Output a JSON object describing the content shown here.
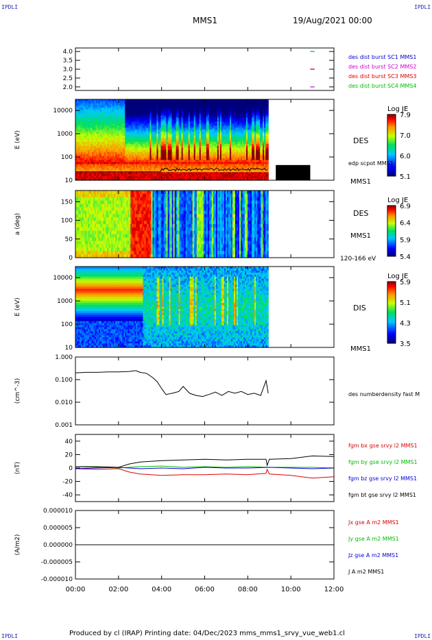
{
  "corners": {
    "tl": "IPDLI",
    "tr": "IPDLI",
    "bl": "IPDLI",
    "br": "IPDLI"
  },
  "header": {
    "spacecraft": "MMS1",
    "datetime": "19/Aug/2021 00:00"
  },
  "footer": {
    "text": "Produced by cl (IRAP)   Printing date: 04/Dec/2023   mms_mms1_srvy_vue_web1.cl"
  },
  "time_axis": {
    "ticks": [
      "00:00",
      "02:00",
      "04:00",
      "06:00",
      "08:00",
      "10:00",
      "12:00"
    ],
    "range_hours": [
      0,
      12
    ]
  },
  "chart_data": [
    {
      "type": "scatter",
      "panel": "burst availability",
      "y_ticks": [
        "4.0",
        "3.5",
        "3.0",
        "2.5",
        "2.0"
      ],
      "ylim": [
        1.8,
        4.2
      ],
      "series": [
        {
          "name": "des dist burst SC1 MMS1",
          "color": "#0000cc",
          "y": 4.0,
          "x_hours": []
        },
        {
          "name": "des dist burst SC2 MMS2",
          "color": "#cc00cc",
          "y": 3.0,
          "x_hours": [
            10.9,
            11.1
          ]
        },
        {
          "name": "des dist burst SC3 MMS3",
          "color": "#dd0000",
          "y": 3.0,
          "x_hours": [
            10.9,
            11.1
          ]
        },
        {
          "name": "des dist burst SC4 MMS4",
          "color": "#00bb00",
          "y": 4.0,
          "x_hours": [
            10.9,
            11.1
          ]
        }
      ],
      "extra_marks": [
        {
          "color": "#cc00cc",
          "y": 2.0,
          "x_hours": [
            10.9,
            11.1
          ]
        }
      ]
    },
    {
      "type": "heatmap",
      "panel": "electron energy spectrogram",
      "ylabel": "E (eV)",
      "y_ticks": [
        "10000",
        "1000",
        "100",
        "10"
      ],
      "yscale": "log",
      "ylim": [
        10,
        30000
      ],
      "right_label": "DES",
      "right_label2": "MMS1",
      "overlay_label": "edp scpot MMS1",
      "colorbar": {
        "title": "Log JE",
        "ticks": [
          "7.9",
          "7.0",
          "6.0",
          "5.1"
        ]
      },
      "data_end_hours": 8.95,
      "overlay_end_hours": 10.9
    },
    {
      "type": "heatmap",
      "panel": "electron pitch angle",
      "ylabel": "a (deg)",
      "y_ticks": [
        "150",
        "100",
        "50",
        "0"
      ],
      "ylim": [
        0,
        180
      ],
      "right_label": "DES",
      "right_label2": "MMS1",
      "bottom_label": "120-166 eV",
      "colorbar": {
        "title": "Log JE",
        "ticks": [
          "6.9",
          "6.4",
          "5.9",
          "5.4"
        ]
      },
      "data_end_hours": 8.95
    },
    {
      "type": "heatmap",
      "panel": "ion energy spectrogram",
      "ylabel": "E (eV)",
      "y_ticks": [
        "10000",
        "1000",
        "100",
        "10"
      ],
      "yscale": "log",
      "ylim": [
        10,
        30000
      ],
      "right_label": "DIS",
      "right_label2": "MMS1",
      "colorbar": {
        "title": "Log JE",
        "ticks": [
          "5.9",
          "5.1",
          "4.3",
          "3.5"
        ]
      },
      "data_end_hours": 8.95
    },
    {
      "type": "line",
      "panel": "density",
      "ylabel": "(cm^-3)",
      "y_ticks": [
        "1.000",
        "0.100",
        "0.010",
        "0.001"
      ],
      "yscale": "log",
      "ylim": [
        0.001,
        1.0
      ],
      "series": [
        {
          "name": "des numberdensity fast M",
          "color": "#000000",
          "x_hours": [
            0,
            0.5,
            1.0,
            1.5,
            2.0,
            2.5,
            2.8,
            3.0,
            3.3,
            3.6,
            3.8,
            4.0,
            4.2,
            4.5,
            4.8,
            5.0,
            5.3,
            5.6,
            5.9,
            6.2,
            6.5,
            6.8,
            7.1,
            7.4,
            7.7,
            8.0,
            8.3,
            8.6,
            8.85,
            8.95
          ],
          "values": [
            0.2,
            0.21,
            0.21,
            0.22,
            0.22,
            0.23,
            0.25,
            0.21,
            0.19,
            0.12,
            0.08,
            0.04,
            0.022,
            0.025,
            0.03,
            0.05,
            0.025,
            0.02,
            0.018,
            0.022,
            0.028,
            0.02,
            0.03,
            0.025,
            0.03,
            0.022,
            0.025,
            0.02,
            0.09,
            0.025
          ]
        }
      ]
    },
    {
      "type": "line",
      "panel": "magnetic field",
      "ylabel": "(nT)",
      "y_ticks": [
        "40",
        "20",
        "0",
        "-20",
        "-40"
      ],
      "ylim": [
        -50,
        50
      ],
      "series": [
        {
          "name": "fgm bx gse srvy l2 MMS1",
          "color": "#dd0000",
          "x_hours": [
            0,
            1,
            2,
            2.5,
            3,
            4,
            5,
            6,
            7,
            8,
            8.85,
            8.9,
            9,
            10,
            11,
            12
          ],
          "values": [
            -1,
            -2,
            -1,
            -6,
            -9,
            -11,
            -10,
            -10,
            -9,
            -10,
            -8,
            -2,
            -9,
            -11,
            -15,
            -13
          ]
        },
        {
          "name": "fgm by gse srvy l2 MMS1",
          "color": "#00bb00",
          "x_hours": [
            0,
            1,
            2,
            3,
            4,
            5,
            6,
            7,
            8,
            9,
            10,
            11,
            12
          ],
          "values": [
            2,
            1,
            0,
            2,
            3,
            1,
            2,
            1,
            2,
            1,
            1,
            1,
            0
          ]
        },
        {
          "name": "fgm bz gse srvy l2 MMS1",
          "color": "#0000dd",
          "x_hours": [
            0,
            1,
            2,
            3,
            4,
            5,
            6,
            7,
            8,
            9,
            10,
            11,
            12
          ],
          "values": [
            -1,
            0,
            1,
            -1,
            0,
            -1,
            1,
            0,
            0,
            1,
            0,
            -1,
            0
          ]
        },
        {
          "name": "fgm bt gse srvy l2 MMS1",
          "color": "#000000",
          "x_hours": [
            0,
            1,
            2,
            2.5,
            3,
            4,
            5,
            6,
            7,
            8,
            8.85,
            8.9,
            9,
            10,
            11,
            12
          ],
          "values": [
            2,
            2,
            1,
            6,
            9,
            11,
            12,
            13,
            12,
            13,
            13,
            4,
            13,
            14,
            18,
            17
          ]
        }
      ]
    },
    {
      "type": "line",
      "panel": "current density",
      "ylabel": "(A/m2)",
      "y_ticks": [
        "0.000010",
        "0.000005",
        "0.000000",
        "-0.000005",
        "-0.000010"
      ],
      "ylim": [
        -1e-05,
        1e-05
      ],
      "series": [
        {
          "name": "Jx gse A m2 MMS1",
          "color": "#dd0000",
          "x_hours": [
            0,
            12
          ],
          "values": [
            0,
            0
          ]
        },
        {
          "name": "Jy gse A m2 MMS1",
          "color": "#00bb00",
          "x_hours": [
            0,
            12
          ],
          "values": [
            0,
            0
          ]
        },
        {
          "name": "Jz gse A m2 MMS1",
          "color": "#0000dd",
          "x_hours": [
            9,
            12
          ],
          "values": [
            0,
            0
          ]
        },
        {
          "name": "J A m2 MMS1",
          "color": "#000000",
          "x_hours": [
            0,
            12
          ],
          "values": [
            0,
            0
          ]
        }
      ]
    }
  ]
}
